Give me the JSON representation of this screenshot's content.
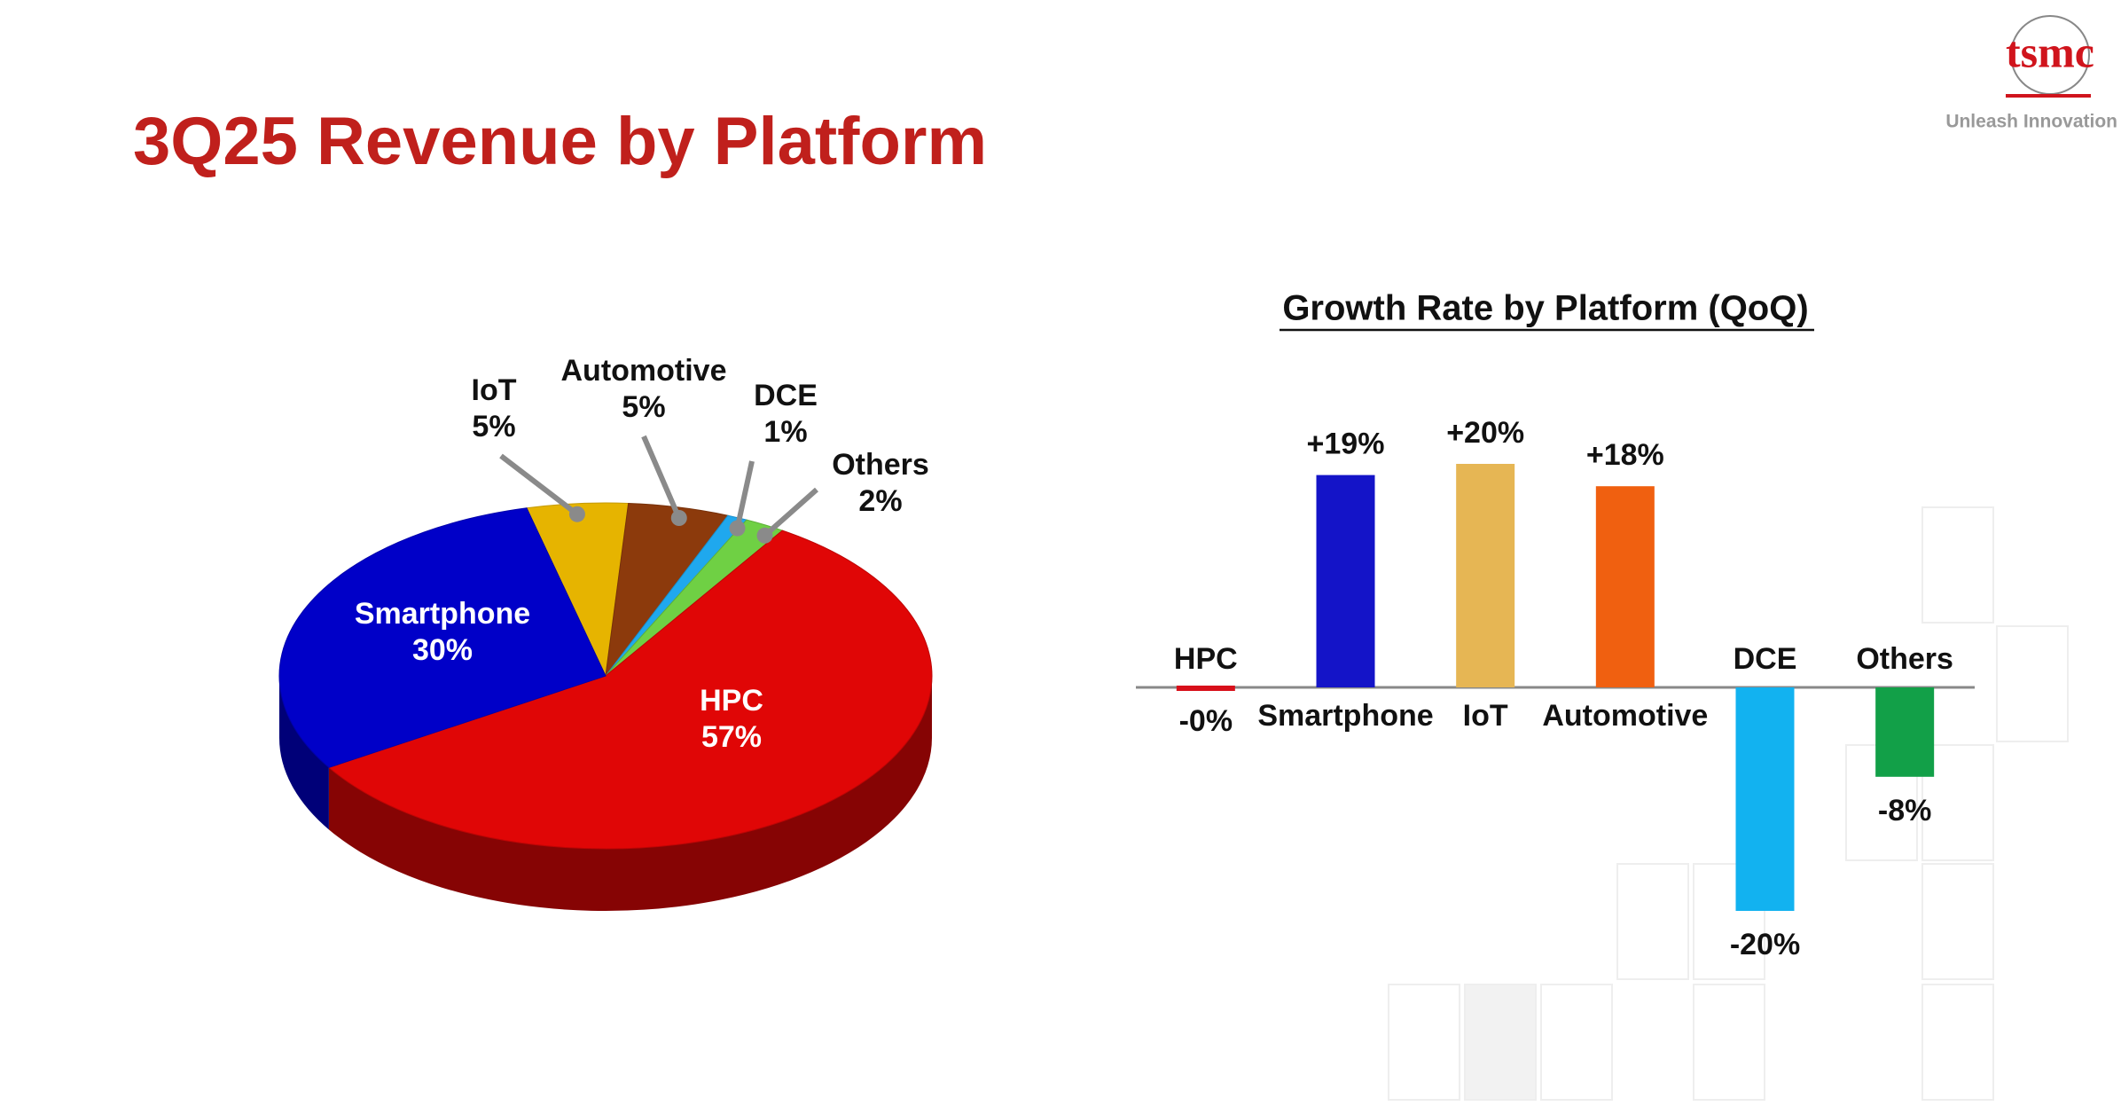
{
  "header": {
    "title": "3Q25 Revenue by Platform",
    "logo": "tsmc",
    "tagline": "Unleash Innovation"
  },
  "chart_data": [
    {
      "type": "pie",
      "categories": [
        "IoT",
        "Automotive",
        "DCE",
        "Others",
        "HPC",
        "Smartphone"
      ],
      "values": [
        5,
        5,
        1,
        2,
        57,
        30
      ],
      "value_labels": [
        "5%",
        "5%",
        "1%",
        "2%",
        "57%",
        "30%"
      ],
      "colors": [
        "#e6b400",
        "#8c3a0c",
        "#1fa8ee",
        "#6fd044",
        "#e00606",
        "#0000c8"
      ]
    },
    {
      "type": "bar",
      "title": "Growth Rate by Platform (QoQ)",
      "categories": [
        "HPC",
        "Smartphone",
        "IoT",
        "Automotive",
        "DCE",
        "Others"
      ],
      "values": [
        0,
        19,
        20,
        18,
        -20,
        -8
      ],
      "value_labels": [
        "-0%",
        "+19%",
        "+20%",
        "+18%",
        "-20%",
        "-8%"
      ],
      "colors": [
        "#d8101a",
        "#1414c8",
        "#e6b654",
        "#f06010",
        "#12b2f0",
        "#12a048"
      ]
    }
  ]
}
